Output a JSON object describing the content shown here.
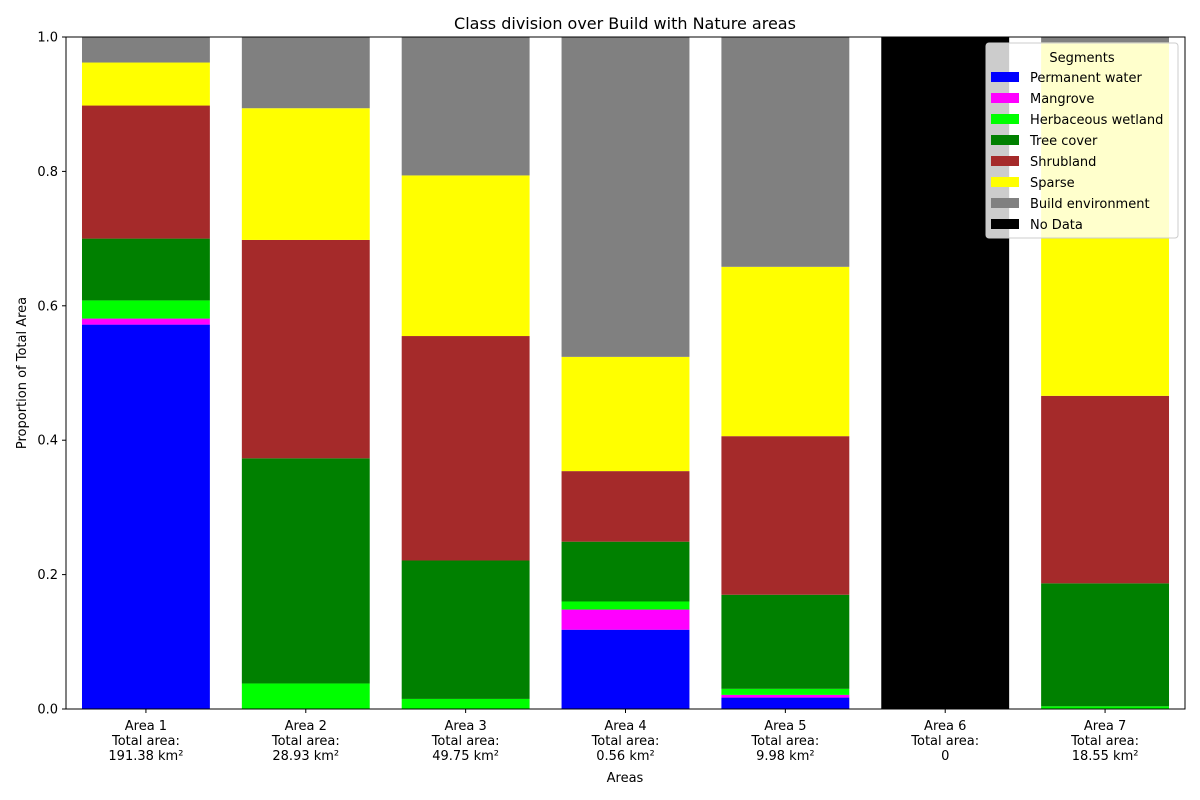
{
  "chart_data": {
    "type": "bar",
    "stacked": true,
    "title": "Class division over Build with Nature areas",
    "xlabel": "Areas",
    "ylabel": "Proportion of Total Area",
    "ylim": [
      0,
      1
    ],
    "yticks": [
      "0.0",
      "0.2",
      "0.4",
      "0.6",
      "0.8",
      "1.0"
    ],
    "grid": false,
    "legend": {
      "title": "Segments",
      "placement": "top-right"
    },
    "categories": [
      {
        "area": "Area 1",
        "total_label": "Total area:",
        "total": "191.38 km²"
      },
      {
        "area": "Area 2",
        "total_label": "Total area:",
        "total": "28.93 km²"
      },
      {
        "area": "Area 3",
        "total_label": "Total area:",
        "total": "49.75 km²"
      },
      {
        "area": "Area 4",
        "total_label": "Total area:",
        "total": "0.56 km²"
      },
      {
        "area": "Area 5",
        "total_label": "Total area:",
        "total": "9.98 km²"
      },
      {
        "area": "Area 6",
        "total_label": "Total area:",
        "total": "0"
      },
      {
        "area": "Area 7",
        "total_label": "Total area:",
        "total": "18.55 km²"
      }
    ],
    "series": [
      {
        "name": "Permanent water",
        "color": "#0000ff",
        "values": [
          0.572,
          0.0,
          0.0,
          0.118,
          0.017,
          0.0,
          0.0
        ]
      },
      {
        "name": "Mangrove",
        "color": "#ff00ff",
        "values": [
          0.009,
          0.0,
          0.0,
          0.03,
          0.004,
          0.0,
          0.0
        ]
      },
      {
        "name": "Herbaceous wetland",
        "color": "#00ff00",
        "values": [
          0.027,
          0.038,
          0.015,
          0.012,
          0.009,
          0.0,
          0.004
        ]
      },
      {
        "name": "Tree cover",
        "color": "#008000",
        "values": [
          0.092,
          0.335,
          0.206,
          0.089,
          0.14,
          0.0,
          0.183
        ]
      },
      {
        "name": "Shrubland",
        "color": "#a52a2a",
        "values": [
          0.198,
          0.325,
          0.334,
          0.105,
          0.236,
          0.0,
          0.279
        ]
      },
      {
        "name": "Sparse",
        "color": "#ffff00",
        "values": [
          0.064,
          0.196,
          0.239,
          0.17,
          0.252,
          0.0,
          0.526
        ]
      },
      {
        "name": "Build environment",
        "color": "#808080",
        "values": [
          0.038,
          0.106,
          0.206,
          0.476,
          0.342,
          0.0,
          0.008
        ]
      },
      {
        "name": "No Data",
        "color": "#000000",
        "values": [
          0.0,
          0.0,
          0.0,
          0.0,
          0.0,
          1.0,
          0.0
        ]
      }
    ]
  }
}
